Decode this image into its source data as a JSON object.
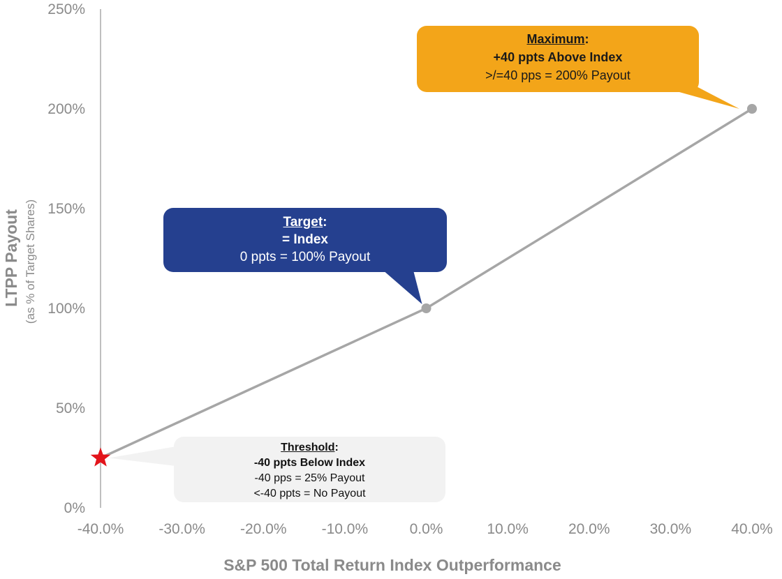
{
  "chart_data": {
    "type": "line",
    "x": [
      -40.0,
      0.0,
      40.0
    ],
    "y": [
      25,
      100,
      200
    ],
    "xlabel": "S&P 500 Total Return Index Outperformance",
    "ylabel": "LTPP Payout",
    "ylabel_sub": "(as % of Target Shares)",
    "xlim": [
      -40,
      40
    ],
    "ylim": [
      0,
      250
    ],
    "xticks": [
      "-40.0%",
      "-30.0%",
      "-20.0%",
      "-10.0%",
      "0.0%",
      "10.0%",
      "20.0%",
      "30.0%",
      "40.0%"
    ],
    "yticks": [
      "0%",
      "50%",
      "100%",
      "150%",
      "200%",
      "250%"
    ],
    "grid": false,
    "line_color": "#a6a6a6",
    "marker_color": "#a6a6a6",
    "threshold_marker_color": "#e3141b",
    "threshold_marker": "star",
    "annotations": {
      "maximum": {
        "title": "Maximum",
        "colon": ":",
        "headline": "+40 ppts Above Index",
        "lines": [
          ">/=40 pps = 200% Payout"
        ],
        "color": "#f3a519"
      },
      "target": {
        "title": "Target",
        "colon": ":",
        "headline": "= Index",
        "lines": [
          "0 ppts = 100% Payout"
        ],
        "color": "#25408f"
      },
      "threshold": {
        "title": "Threshold",
        "colon": ":",
        "headline": "-40 ppts Below Index",
        "lines": [
          "-40 pps = 25% Payout",
          "<-40 ppts = No Payout"
        ],
        "color": "#f2f2f2"
      }
    }
  }
}
